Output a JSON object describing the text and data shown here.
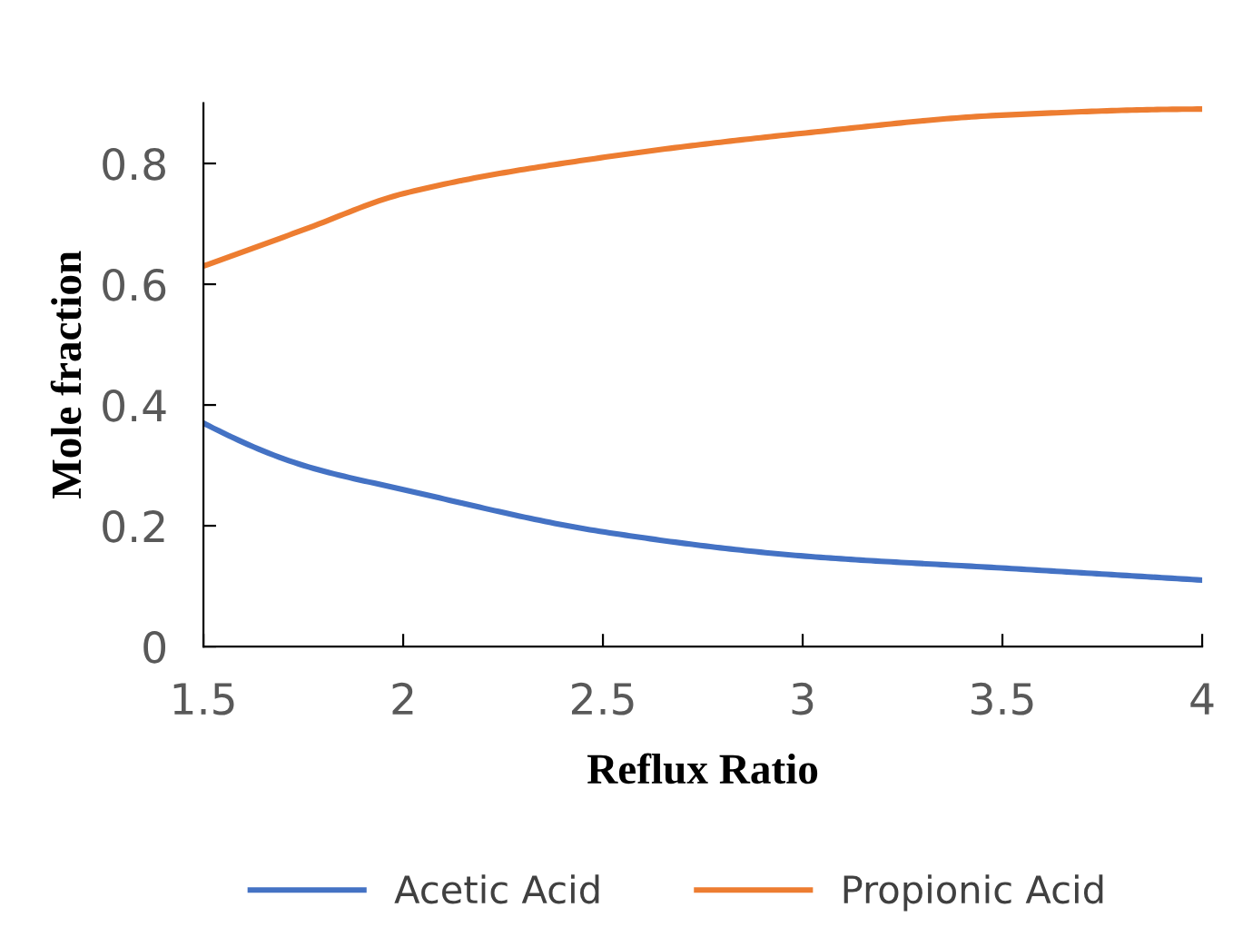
{
  "chart_data": {
    "type": "line",
    "xlabel": "Reflux Ratio",
    "ylabel": "Mole fraction",
    "x": [
      1.5,
      1.75,
      2,
      2.5,
      3,
      3.5,
      4
    ],
    "series": [
      {
        "name": "Acetic Acid",
        "color": "#4472c4",
        "values": [
          0.37,
          0.3,
          0.26,
          0.19,
          0.15,
          0.13,
          0.11
        ]
      },
      {
        "name": "Propionic Acid",
        "color": "#ed7d31",
        "values": [
          0.63,
          0.69,
          0.75,
          0.81,
          0.85,
          0.88,
          0.89
        ]
      }
    ],
    "xlim": [
      1.5,
      4
    ],
    "xticks": [
      1.5,
      2,
      2.5,
      3,
      3.5,
      4
    ],
    "ylim": [
      0,
      0.9
    ],
    "yticks": [
      0,
      0.2,
      0.4,
      0.6,
      0.8
    ],
    "grid": false,
    "legend": "bottom",
    "marker": "none",
    "line_style": "solid"
  }
}
